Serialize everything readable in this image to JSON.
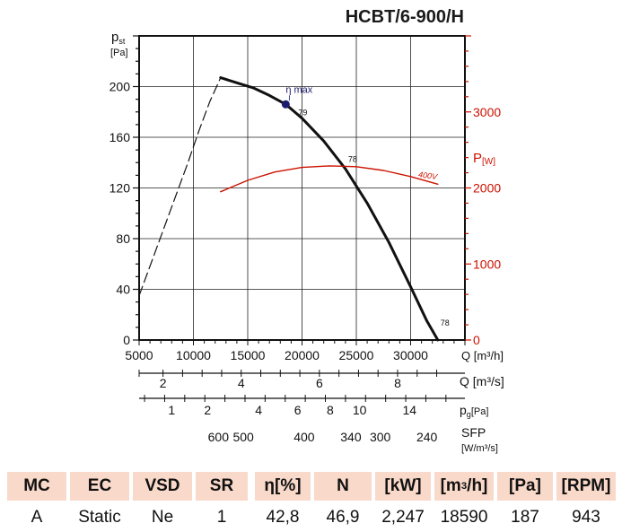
{
  "chart_data": {
    "type": "line",
    "title": "HCBT/6-900/H",
    "ylabel_main": "p",
    "ylabel_sub": "st",
    "yunit": "[Pa]",
    "xlabel": "Q [m³/h]",
    "xlim": [
      5000,
      35000
    ],
    "ylim": [
      0,
      240
    ],
    "xticks": [
      "5000",
      "10000",
      "15000",
      "20000",
      "25000",
      "30000"
    ],
    "yticks": [
      "0",
      "40",
      "80",
      "120",
      "160",
      "200"
    ],
    "grid": true,
    "right_axis": {
      "label": "P",
      "unit": "[W]",
      "ylim": [
        0,
        4000
      ],
      "ticks": [
        "0",
        "1000",
        "2000",
        "3000"
      ],
      "color": "#cc1100"
    },
    "series": [
      {
        "name": "",
        "style": "dashed",
        "axis": "left",
        "color": "#111111",
        "x": [
          5000,
          6500,
          8000,
          9500,
          10500,
          11500,
          12500
        ],
        "y": [
          35,
          70,
          105,
          140,
          165,
          188,
          207
        ]
      },
      {
        "name": "",
        "style": "solid",
        "axis": "left",
        "color": "#111111",
        "x": [
          12500,
          14000,
          15500,
          17000,
          18500,
          20000,
          22000,
          24000,
          26000,
          28000,
          30000,
          31500,
          32500
        ],
        "y": [
          207,
          203,
          199,
          193,
          186,
          175,
          157,
          135,
          108,
          77,
          42,
          15,
          0
        ]
      },
      {
        "name": "400V",
        "style": "solid",
        "axis": "right",
        "color": "#cc1100",
        "x": [
          12500,
          15000,
          17500,
          20000,
          22500,
          25000,
          27500,
          30000,
          32500
        ],
        "y": [
          1950,
          2100,
          2210,
          2270,
          2290,
          2280,
          2230,
          2150,
          2050
        ]
      }
    ],
    "annotations": [
      {
        "text": "η max",
        "x": 18500,
        "y": 186,
        "marker": true,
        "color": "#1a1a6e"
      },
      {
        "text": "79",
        "x": 18500,
        "y": 186
      },
      {
        "text": "78",
        "x": 24000,
        "y": 135
      },
      {
        "text": "78",
        "x": 32500,
        "y": 0
      }
    ],
    "sub_axes": [
      {
        "label": "Q [m³/s]",
        "ticks": [
          {
            "q": 7200,
            "text": "2"
          },
          {
            "q": 14400,
            "text": "4"
          },
          {
            "q": 21600,
            "text": "6"
          },
          {
            "q": 28800,
            "text": "8"
          }
        ],
        "minor_q": [
          5000,
          7200,
          9000,
          10800,
          12600,
          14400,
          16200,
          18000,
          19800,
          21600,
          23400,
          25200,
          27000,
          28800,
          30600,
          32400
        ]
      },
      {
        "label": "p",
        "label_sub": "g",
        "unit": "[Pa]",
        "ticks": [
          {
            "q": 8000,
            "text": "1"
          },
          {
            "q": 11300,
            "text": "2"
          },
          {
            "q": 16000,
            "text": "4"
          },
          {
            "q": 19600,
            "text": "6"
          },
          {
            "q": 22600,
            "text": "8"
          },
          {
            "q": 25300,
            "text": "10"
          },
          {
            "q": 29900,
            "text": "14"
          }
        ]
      },
      {
        "label": "SFP",
        "unit": "[W/m³/s]",
        "ticks": [
          {
            "q": 12300,
            "text": "600"
          },
          {
            "q": 14600,
            "text": "500"
          },
          {
            "q": 20200,
            "text": "400"
          },
          {
            "q": 24500,
            "text": "340"
          },
          {
            "q": 27200,
            "text": "300"
          },
          {
            "q": 31500,
            "text": "240"
          }
        ]
      }
    ]
  },
  "table": {
    "headers": [
      "MC",
      "EC",
      "VSD",
      "SR",
      "η[%]",
      "N",
      "[kW]",
      "[m³/h]",
      "[Pa]",
      "[RPM]"
    ],
    "values": [
      "A",
      "Static",
      "Ne",
      "1",
      "42,8",
      "46,9",
      "2,247",
      "18590",
      "187",
      "943"
    ]
  }
}
